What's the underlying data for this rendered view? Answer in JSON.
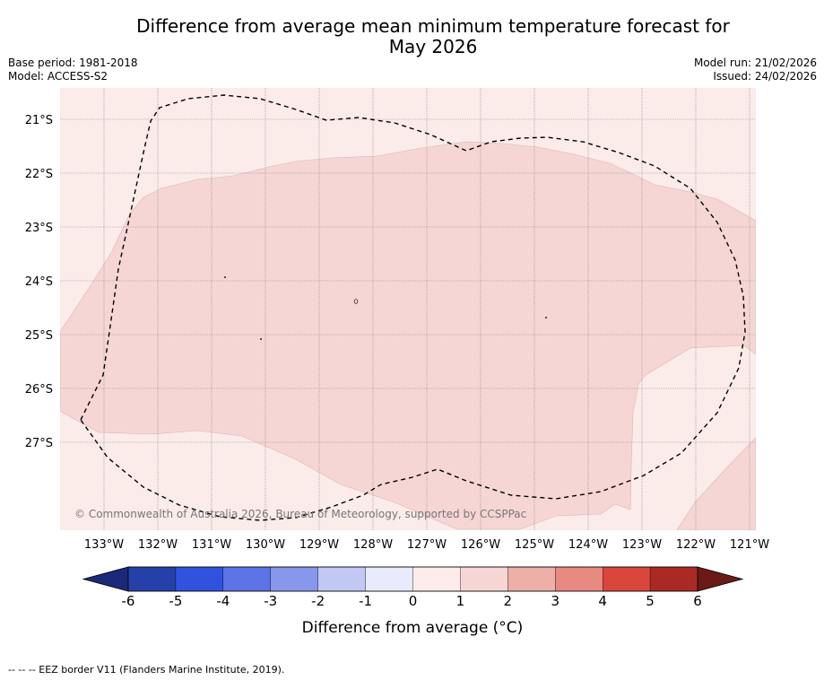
{
  "header": {
    "title_line1": "Difference from average mean minimum temperature forecast for",
    "title_line2": "May 2026",
    "base_period": "Base period: 1981-2018",
    "model": "Model: ACCESS-S2",
    "model_run": "Model run: 21/02/2026",
    "issued": "Issued: 24/02/2026"
  },
  "map": {
    "lat_labels": [
      "21°S",
      "22°S",
      "23°S",
      "24°S",
      "25°S",
      "26°S",
      "27°S"
    ],
    "lon_labels": [
      "133°W",
      "132°W",
      "131°W",
      "130°W",
      "129°W",
      "128°W",
      "127°W",
      "126°W",
      "125°W",
      "124°W",
      "123°W",
      "122°W",
      "121°W"
    ],
    "copyright": "© Commonwealth of Australia 2026, Bureau of Meteorology, supported by CCSPPac",
    "anomaly_classes": [
      {
        "range": "0 to 1",
        "color": "#fbebe9"
      },
      {
        "range": "1 to 2",
        "color": "#f5d6d4"
      }
    ]
  },
  "colorbar": {
    "tick_labels": [
      "-6",
      "-5",
      "-4",
      "-3",
      "-2",
      "-1",
      "0",
      "1",
      "2",
      "3",
      "4",
      "5",
      "6"
    ],
    "label": "Difference from average (°C)",
    "under_color": "#1b2a78",
    "over_color": "#6b1a17",
    "colors": [
      "#2540a8",
      "#3052de",
      "#5c74e6",
      "#8897ec",
      "#c1c8f4",
      "#e8ebfb",
      "#fcebe8",
      "#f5d6d4",
      "#edafa8",
      "#e88a82",
      "#d9463c",
      "#a92a24"
    ]
  },
  "footer": {
    "legend": "--  --  -- EEZ border V11 (Flanders Marine Institute, 2019)."
  }
}
